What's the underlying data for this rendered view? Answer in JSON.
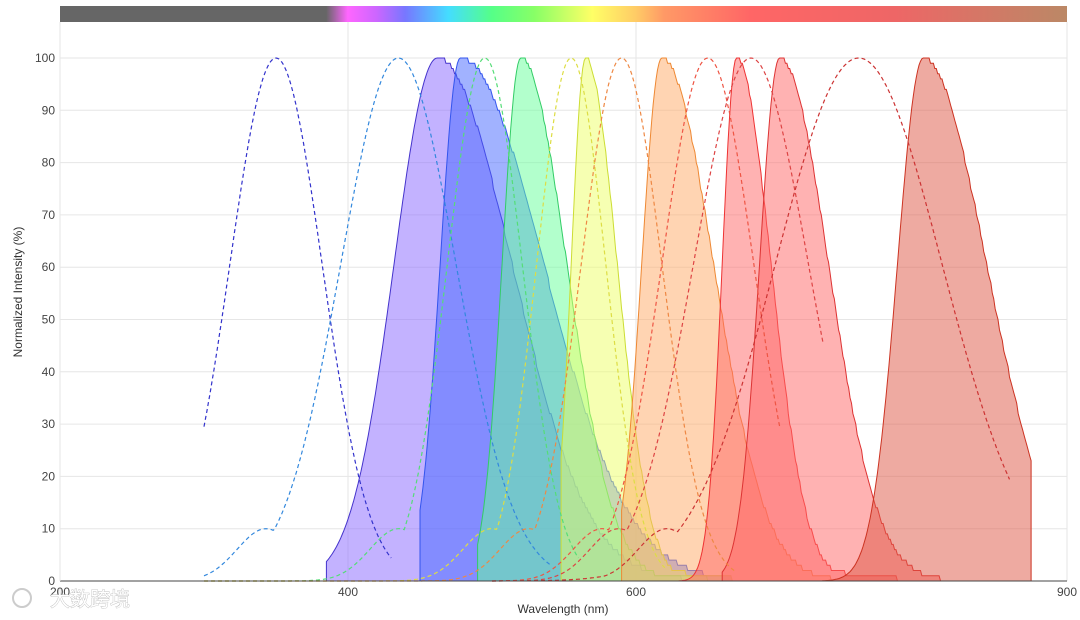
{
  "chart_data": {
    "type": "area",
    "xlabel": "Wavelength (nm)",
    "ylabel": "Normalized Intensity (%)",
    "xlim": [
      200,
      900
    ],
    "ylim": [
      0,
      105
    ],
    "x_ticks": [
      200,
      400,
      600,
      900
    ],
    "y_ticks": [
      0,
      10,
      20,
      30,
      40,
      50,
      60,
      70,
      80,
      90,
      100
    ],
    "grid": true,
    "legend": "none",
    "spectrum_bar": {
      "range": [
        200,
        900
      ],
      "stops": [
        {
          "nm": 200,
          "color": "#666666"
        },
        {
          "nm": 385,
          "color": "#666666"
        },
        {
          "nm": 400,
          "color": "#ff66ff"
        },
        {
          "nm": 420,
          "color": "#cc66ff"
        },
        {
          "nm": 440,
          "color": "#7777ff"
        },
        {
          "nm": 470,
          "color": "#44ddff"
        },
        {
          "nm": 500,
          "color": "#55ff88"
        },
        {
          "nm": 530,
          "color": "#88ff66"
        },
        {
          "nm": 570,
          "color": "#ffff66"
        },
        {
          "nm": 600,
          "color": "#ffcc66"
        },
        {
          "nm": 620,
          "color": "#ff9966"
        },
        {
          "nm": 680,
          "color": "#ff6666"
        },
        {
          "nm": 780,
          "color": "#ee6666"
        },
        {
          "nm": 900,
          "color": "#bb8866"
        }
      ]
    },
    "emission_series": [
      {
        "peak": 462,
        "fwhm_left": 30,
        "fwhm_right": 52,
        "start": 385,
        "end": 640,
        "fill": "#8866ff",
        "stroke": "#4433cc"
      },
      {
        "peak": 478,
        "fwhm_left": 14,
        "fwhm_right": 58,
        "start": 450,
        "end": 700,
        "fill": "#4466ff",
        "stroke": "#3355ee"
      },
      {
        "peak": 520,
        "fwhm_left": 13,
        "fwhm_right": 32,
        "start": 490,
        "end": 690,
        "fill": "#66ff99",
        "stroke": "#33cc66"
      },
      {
        "peak": 565,
        "fwhm_left": 10,
        "fwhm_right": 22,
        "start": 548,
        "end": 690,
        "fill": "#eeff66",
        "stroke": "#ccdd33"
      },
      {
        "peak": 618,
        "fwhm_left": 14,
        "fwhm_right": 36,
        "start": 590,
        "end": 760,
        "fill": "#ffaa66",
        "stroke": "#ee8833"
      },
      {
        "peak": 670,
        "fwhm_left": 10,
        "fwhm_right": 24,
        "start": 630,
        "end": 810,
        "fill": "#ff6666",
        "stroke": "#ee3333"
      },
      {
        "peak": 700,
        "fwhm_left": 14,
        "fwhm_right": 34,
        "start": 660,
        "end": 840,
        "fill": "#ff6666",
        "stroke": "#dd3333"
      },
      {
        "peak": 800,
        "fwhm_left": 18,
        "fwhm_right": 44,
        "start": 730,
        "end": 875,
        "fill": "#dd5544",
        "stroke": "#cc3322"
      }
    ],
    "excitation_series": [
      {
        "peak": 350,
        "width": 32,
        "start": 300,
        "end": 430,
        "color": "#3333cc"
      },
      {
        "peak": 435,
        "width": 40,
        "start": 300,
        "end": 540,
        "color": "#3388dd"
      },
      {
        "peak": 495,
        "width": 26,
        "start": 300,
        "end": 560,
        "color": "#55dd77"
      },
      {
        "peak": 555,
        "width": 24,
        "start": 300,
        "end": 620,
        "color": "#dddd44"
      },
      {
        "peak": 590,
        "width": 28,
        "start": 300,
        "end": 670,
        "color": "#ee8844"
      },
      {
        "peak": 650,
        "width": 32,
        "start": 500,
        "end": 700,
        "color": "#ee5544"
      },
      {
        "peak": 680,
        "width": 40,
        "start": 500,
        "end": 730,
        "color": "#dd4444"
      },
      {
        "peak": 755,
        "width": 58,
        "start": 500,
        "end": 860,
        "color": "#cc3333"
      }
    ]
  },
  "watermark": {
    "text": "大数跨境"
  }
}
